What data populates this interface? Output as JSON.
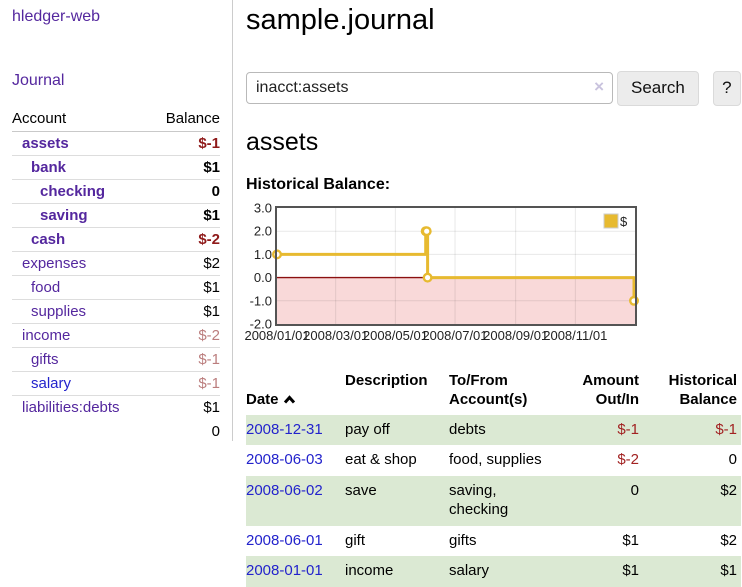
{
  "colors": {
    "purple": "#54279e",
    "blue": "#2323cc",
    "neg": "#a22222",
    "negstrong": "#8f1a1a",
    "negdim": "#bb7d7d",
    "greenrow": "#dbe9d3",
    "gold": "#e7ba30",
    "pink": "#f9d9d9",
    "zerored": "#8b1010"
  },
  "sidebar": {
    "brand": "hledger-web",
    "journal_link": "Journal",
    "accounts": {
      "header_account": "Account",
      "header_balance": "Balance",
      "rows": [
        {
          "name": "assets",
          "depth": 1,
          "bold": true,
          "link": "purple",
          "balance": "$-1",
          "balance_class": "neg-strong b"
        },
        {
          "name": "bank",
          "depth": 2,
          "bold": true,
          "link": "purple",
          "balance": "$1",
          "balance_class": "b"
        },
        {
          "name": "checking",
          "depth": 3,
          "bold": true,
          "link": "purple",
          "balance": "0",
          "balance_class": "b"
        },
        {
          "name": "saving",
          "depth": 3,
          "bold": true,
          "link": "purple",
          "balance": "$1",
          "balance_class": "b"
        },
        {
          "name": "cash",
          "depth": 2,
          "bold": true,
          "link": "purple",
          "balance": "$-2",
          "balance_class": "neg-strong b"
        },
        {
          "name": "expenses",
          "depth": 1,
          "bold": false,
          "link": "purple",
          "balance": "$2",
          "balance_class": ""
        },
        {
          "name": "food",
          "depth": 2,
          "bold": false,
          "link": "purple",
          "balance": "$1",
          "balance_class": ""
        },
        {
          "name": "supplies",
          "depth": 2,
          "bold": false,
          "link": "purple",
          "balance": "$1",
          "balance_class": ""
        },
        {
          "name": "income",
          "depth": 1,
          "bold": false,
          "link": "purple",
          "balance": "$-2",
          "balance_class": "neg-dim"
        },
        {
          "name": "gifts",
          "depth": 2,
          "bold": false,
          "link": "purple",
          "balance": "$-1",
          "balance_class": "neg-dim"
        },
        {
          "name": "salary",
          "depth": 2,
          "bold": false,
          "link": "blue",
          "balance": "$-1",
          "balance_class": "neg-dim"
        },
        {
          "name": "liabilities:debts",
          "depth": 1,
          "bold": false,
          "link": "purple",
          "balance": "$1",
          "balance_class": ""
        }
      ],
      "total": "0"
    }
  },
  "header": {
    "title": "sample.journal"
  },
  "search": {
    "value": "inacct:assets",
    "clear_icon": "×",
    "button_label": "Search",
    "help_label": "?"
  },
  "account_page": {
    "title": "assets",
    "chart_label": "Historical Balance:"
  },
  "chart_data": {
    "type": "line",
    "step": true,
    "title": "Historical Balance:",
    "series": [
      {
        "name": "$",
        "color": "#e7ba30",
        "points": [
          [
            "2008-01-01",
            1
          ],
          [
            "2008-06-01",
            2
          ],
          [
            "2008-06-02",
            2
          ],
          [
            "2008-06-03",
            0
          ],
          [
            "2008-12-31",
            -1
          ]
        ]
      }
    ],
    "x_range": [
      "2008-01-01",
      "2009-01-01"
    ],
    "x_tick_dates": [
      "2008-01-01",
      "2008-03-01",
      "2008-05-01",
      "2008-07-01",
      "2008-09-01",
      "2008-11-01"
    ],
    "x_tick_labels": [
      "2008/01/01",
      "2008/03/01",
      "2008/05/01",
      "2008/07/01",
      "2008/09/01",
      "2008/11/01"
    ],
    "y_ticks": [
      3.0,
      2.0,
      1.0,
      0.0,
      -1.0,
      -2.0
    ],
    "ylim": [
      -2,
      3
    ],
    "grid": true,
    "negative_region_fill": "#f9d9d9",
    "zero_line_color": "#8b1010",
    "legend": {
      "label": "$",
      "position": "top-right"
    }
  },
  "transactions": {
    "columns": [
      "Date",
      "Description",
      "To/From\nAccount(s)",
      "Amount\nOut/In",
      "Historical\nBalance"
    ],
    "rows": [
      {
        "date": "2008-12-31",
        "description": "pay off",
        "accounts": "debts",
        "amount": "$-1",
        "amount_neg": true,
        "balance": "$-1",
        "balance_neg": true
      },
      {
        "date": "2008-06-03",
        "description": "eat & shop",
        "accounts": "food, supplies",
        "amount": "$-2",
        "amount_neg": true,
        "balance": "0",
        "balance_neg": false
      },
      {
        "date": "2008-06-02",
        "description": "save",
        "accounts": "saving, checking",
        "amount": "0",
        "amount_neg": false,
        "balance": "$2",
        "balance_neg": false
      },
      {
        "date": "2008-06-01",
        "description": "gift",
        "accounts": "gifts",
        "amount": "$1",
        "amount_neg": false,
        "balance": "$2",
        "balance_neg": false
      },
      {
        "date": "2008-01-01",
        "description": "income",
        "accounts": "salary",
        "amount": "$1",
        "amount_neg": false,
        "balance": "$1",
        "balance_neg": false
      }
    ]
  }
}
